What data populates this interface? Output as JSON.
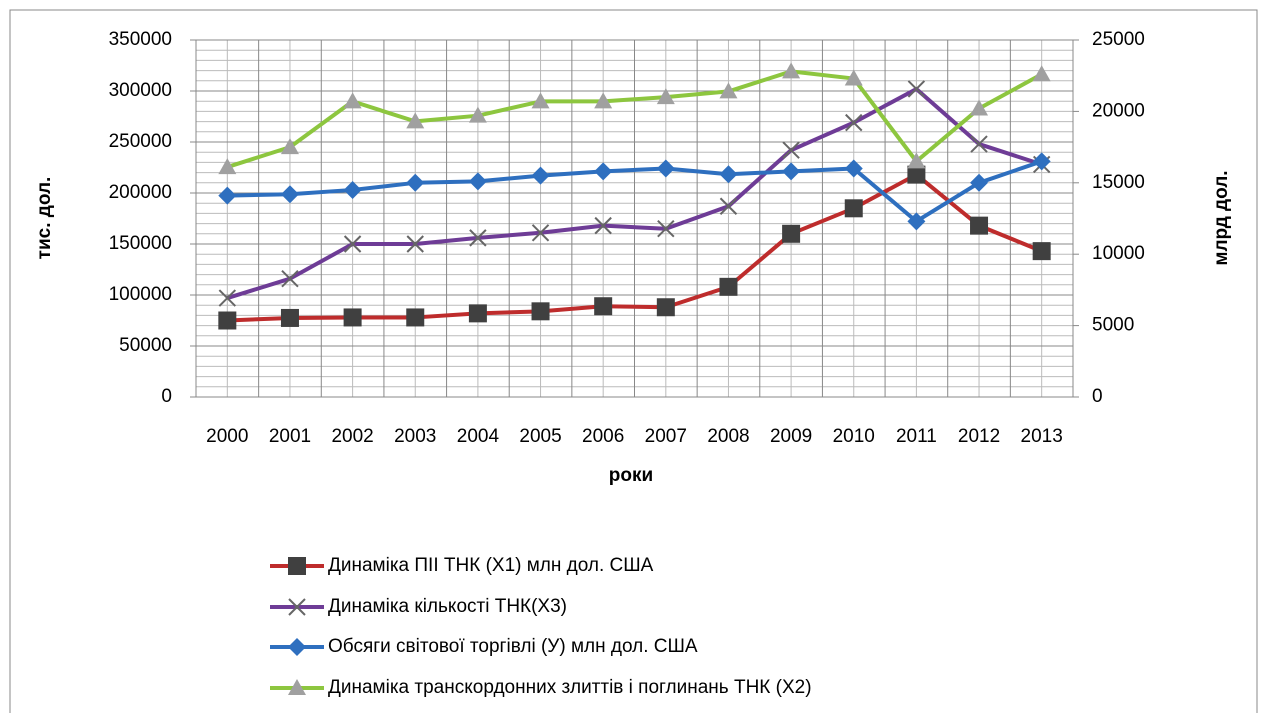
{
  "chart_data": {
    "type": "line",
    "x_label": "роки",
    "y_label": "тис. дол.",
    "y2_label": "млрд дол.",
    "categories": [
      "2000",
      "2001",
      "2002",
      "2003",
      "2004",
      "2005",
      "2006",
      "2007",
      "2008",
      "2009",
      "2010",
      "2011",
      "2012",
      "2013"
    ],
    "ylim": [
      0,
      350000
    ],
    "yticks": [
      0,
      50000,
      100000,
      150000,
      200000,
      250000,
      300000,
      350000
    ],
    "y2lim": [
      0,
      25000
    ],
    "y2ticks": [
      0,
      5000,
      10000,
      15000,
      20000,
      25000
    ],
    "grid": true,
    "series": [
      {
        "name": "Динаміка ПІІ ТНК (Х1) млн дол. США",
        "color": "#be2c2c",
        "marker": "square",
        "marker_color": "#404040",
        "values": [
          75000,
          77500,
          78000,
          78000,
          82000,
          84000,
          89000,
          88000,
          108000,
          160000,
          185000,
          218000,
          168000,
          143000
        ]
      },
      {
        "name": "Динаміка кількості ТНК(Х3)",
        "color": "#6e3c96",
        "marker": "x",
        "marker_color": "#666666",
        "values": [
          97000,
          116000,
          150000,
          150000,
          156000,
          161000,
          168000,
          165000,
          187000,
          242000,
          269000,
          302000,
          248000,
          228000
        ]
      },
      {
        "name": "Обсяги світової торгівлі (У) млн дол. США",
        "color": "#2e6fbf",
        "marker": "diamond",
        "marker_color": "#2e6fbf",
        "axis": "y2",
        "values": [
          14100,
          14200,
          14500,
          15000,
          15100,
          15500,
          15800,
          16000,
          15600,
          15800,
          16000,
          12300,
          15000,
          16500
        ]
      },
      {
        "name": "Динаміка транскордонних злиттів і поглинань ТНК (Х2)",
        "color": "#8dc63f",
        "marker": "triangle",
        "marker_color": "#a0a0a0",
        "axis": "y2",
        "values": [
          16100,
          17500,
          20700,
          19300,
          19700,
          20700,
          20700,
          21000,
          21400,
          22800,
          22300,
          16500,
          20200,
          22600
        ]
      }
    ]
  }
}
